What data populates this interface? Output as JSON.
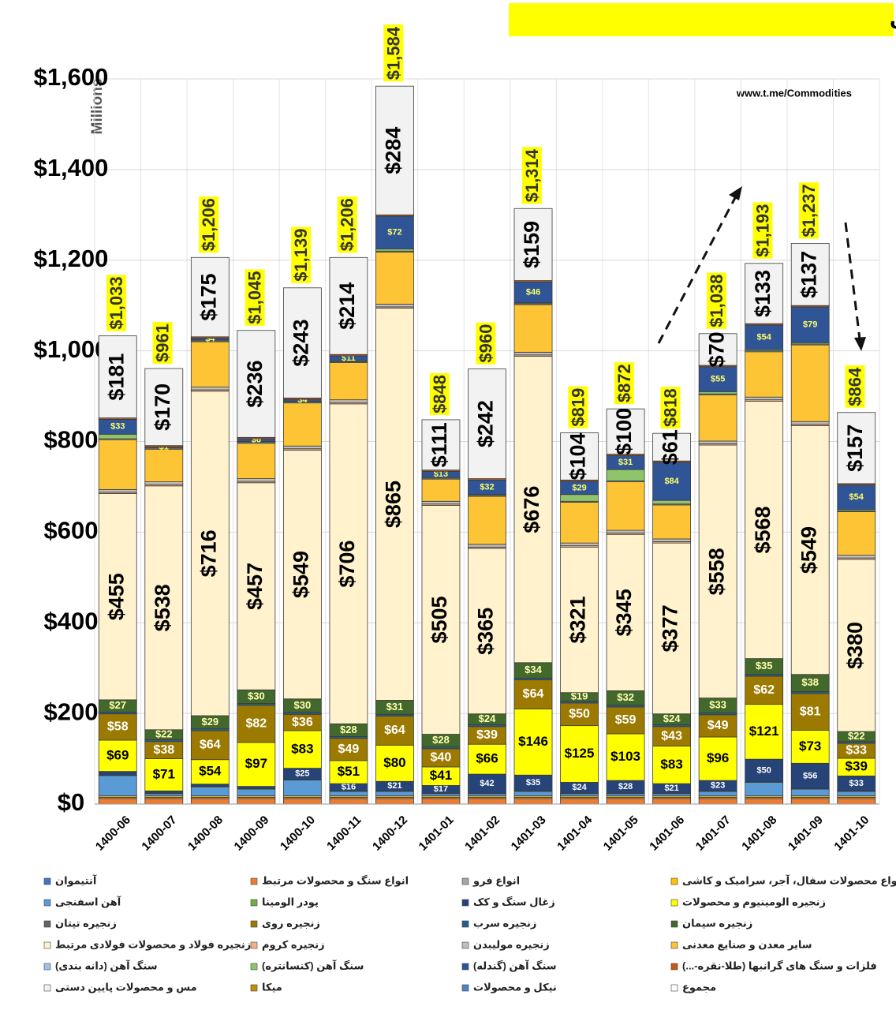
{
  "chart_data": {
    "type": "stacked_bar",
    "title": "صادرات ماهانه محصولات معدن و صنایع معدنی ایران",
    "source": "www.t.me/Commodities",
    "y_label": "Millions",
    "categories": [
      "1400-06",
      "1400-07",
      "1400-08",
      "1400-09",
      "1400-10",
      "1400-11",
      "1400-12",
      "1401-01",
      "1401-02",
      "1401-03",
      "1401-04",
      "1401-05",
      "1401-06",
      "1401-07",
      "1401-08",
      "1401-09",
      "1401-10"
    ],
    "ylim": [
      0,
      1600
    ],
    "yticks": [
      {
        "value": 0,
        "label": "$0"
      },
      {
        "value": 200,
        "label": "$200"
      },
      {
        "value": 400,
        "label": "$400"
      },
      {
        "value": 600,
        "label": "$600"
      },
      {
        "value": 800,
        "label": "$800"
      },
      {
        "value": 1000,
        "label": "$1,000"
      },
      {
        "value": 1200,
        "label": "$1,200"
      },
      {
        "value": 1400,
        "label": "$1,400"
      },
      {
        "value": 1600,
        "label": "$1,600"
      }
    ],
    "grid": true,
    "legend": "bottom",
    "series": [
      {
        "name": "آنتیموان",
        "color": "#4472c4",
        "values": [
          0,
          0,
          0,
          0,
          0,
          0,
          0,
          0,
          0,
          0,
          0,
          0,
          0,
          0,
          0,
          0,
          0
        ]
      },
      {
        "name": "انواع سنگ و محصولات مرتبط",
        "color": "#ed7d31",
        "values": [
          12,
          12,
          12,
          12,
          12,
          12,
          12,
          12,
          12,
          12,
          12,
          12,
          12,
          12,
          12,
          12,
          12
        ]
      },
      {
        "name": "انواع فرو",
        "color": "#a5a5a5",
        "values": [
          3,
          3,
          3,
          3,
          3,
          3,
          3,
          3,
          3,
          3,
          3,
          3,
          3,
          3,
          3,
          3,
          3
        ]
      },
      {
        "name": "انواع محصولات سفال، آجر، سرامیک و کاشی",
        "color": "#ffc000",
        "values": [
          3,
          3,
          3,
          3,
          3,
          3,
          3,
          3,
          3,
          3,
          3,
          3,
          3,
          3,
          3,
          3,
          3
        ]
      },
      {
        "name": "آهن اسفنجی",
        "color": "#5b9bd5",
        "values": [
          45,
          5,
          20,
          15,
          35,
          10,
          10,
          5,
          5,
          10,
          5,
          5,
          5,
          10,
          30,
          15,
          10
        ]
      },
      {
        "name": "پودر الومینا",
        "color": "#70ad47",
        "values": [
          1,
          1,
          1,
          1,
          1,
          1,
          1,
          1,
          1,
          1,
          1,
          1,
          1,
          1,
          1,
          1,
          1
        ]
      },
      {
        "name": "زغال سنگ و کک",
        "color": "#264478",
        "values": [
          8,
          5,
          5,
          5,
          25,
          16,
          21,
          17,
          42,
          35,
          24,
          28,
          21,
          23,
          50,
          56,
          33
        ],
        "value_labels": [
          null,
          null,
          null,
          null,
          "$25",
          "$16",
          "$21",
          "$17",
          "$42",
          "$35",
          "$24",
          "$28",
          "$21",
          "$23",
          "$50",
          "$56",
          "$33"
        ]
      },
      {
        "name": "زنجیره الومینیوم و محصولات",
        "color": "#ffff00",
        "values": [
          69,
          71,
          54,
          97,
          83,
          51,
          80,
          41,
          66,
          146,
          125,
          103,
          83,
          96,
          121,
          73,
          39
        ],
        "value_labels": [
          "$69",
          "$71",
          "$54",
          "$97",
          "$83",
          "$51",
          "$80",
          "$41",
          "$66",
          "$146",
          "$125",
          "$103",
          "$83",
          "$96",
          "$121",
          "$73",
          "$39"
        ]
      },
      {
        "name": "زنجیره تیتان",
        "color": "#636363",
        "values": [
          0,
          0,
          0,
          0,
          0,
          0,
          0,
          0,
          0,
          0,
          0,
          0,
          0,
          0,
          0,
          0,
          0
        ]
      },
      {
        "name": "زنجیره روی",
        "color": "#9c7a00",
        "values": [
          58,
          38,
          64,
          82,
          36,
          49,
          64,
          40,
          39,
          64,
          50,
          59,
          43,
          49,
          62,
          81,
          33
        ],
        "value_labels": [
          "$58",
          "$38",
          "$64",
          "$82",
          "$36",
          "$49",
          "$64",
          "$40",
          "$39",
          "$64",
          "$50",
          "$59",
          "$43",
          "$49",
          "$62",
          "$81",
          "$33"
        ]
      },
      {
        "name": "زنجیره سرب",
        "color": "#255e91",
        "values": [
          4,
          4,
          4,
          4,
          4,
          4,
          4,
          4,
          4,
          4,
          4,
          4,
          4,
          4,
          4,
          4,
          4
        ]
      },
      {
        "name": "زنجیره سیمان",
        "color": "#43682b",
        "values": [
          27,
          22,
          29,
          30,
          30,
          28,
          31,
          28,
          24,
          34,
          19,
          32,
          24,
          33,
          35,
          38,
          22
        ],
        "value_labels": [
          "$27",
          "$22",
          "$29",
          "$30",
          "$30",
          "$28",
          "$31",
          "$28",
          "$24",
          "$34",
          "$19",
          "$32",
          "$24",
          "$33",
          "$35",
          "$38",
          "$22"
        ]
      },
      {
        "name": "زنجیره فولاد و محصولات فولادی مرتبط",
        "color": "#fff2cc",
        "values": [
          455,
          538,
          716,
          457,
          549,
          706,
          865,
          505,
          365,
          676,
          321,
          345,
          377,
          558,
          568,
          549,
          380
        ],
        "value_labels": [
          "$455",
          "$538",
          "$716",
          "$457",
          "$549",
          "$706",
          "$865",
          "$505",
          "$365",
          "$676",
          "$321",
          "$345",
          "$377",
          "$558",
          "$568",
          "$549",
          "$380"
        ]
      },
      {
        "name": "زنجیره کروم",
        "color": "#f4b183",
        "values": [
          3,
          3,
          3,
          3,
          3,
          3,
          3,
          3,
          3,
          3,
          3,
          3,
          3,
          3,
          3,
          3,
          3
        ]
      },
      {
        "name": "زنجیره مولیبدن",
        "color": "#bfbfbf",
        "values": [
          6,
          6,
          6,
          6,
          6,
          6,
          6,
          6,
          6,
          6,
          6,
          6,
          6,
          6,
          6,
          6,
          6
        ]
      },
      {
        "name": "سایر معدن و صنایع معدنی",
        "color": "#fdc436",
        "values": [
          110,
          72,
          100,
          78,
          95,
          82,
          115,
          49,
          106,
          105,
          90,
          107,
          75,
          102,
          100,
          169,
          96
        ]
      },
      {
        "name": "سنگ آهن (دانه بندی)",
        "color": "#9dc3e6",
        "values": [
          2,
          2,
          2,
          2,
          2,
          2,
          2,
          2,
          2,
          2,
          2,
          2,
          2,
          2,
          2,
          2,
          2
        ]
      },
      {
        "name": "سنگ آهن (کنسانتره)",
        "color": "#8fc46b",
        "values": [
          10,
          2,
          2,
          2,
          2,
          2,
          5,
          2,
          2,
          2,
          15,
          25,
          8,
          5,
          3,
          3,
          3
        ]
      },
      {
        "name": "سنگ آهن (گندله)",
        "color": "#2f5597",
        "values": [
          33,
          1,
          4,
          6,
          4,
          11,
          72,
          13,
          32,
          46,
          29,
          31,
          84,
          55,
          54,
          79,
          54
        ],
        "value_labels": [
          "$33",
          "$1",
          "$4",
          "$6",
          "$4",
          "$11",
          "$72",
          "$13",
          "$32",
          "$46",
          "$29",
          "$31",
          "$84",
          "$55",
          "$54",
          "$79",
          "$54"
        ]
      },
      {
        "name": "فلزات و سنگ های گرانبها (طلا-نقره-...)",
        "color": "#c55a11",
        "values": [
          3,
          3,
          3,
          3,
          3,
          3,
          3,
          3,
          3,
          3,
          3,
          3,
          3,
          3,
          3,
          3,
          3
        ]
      },
      {
        "name": "مس و محصولات پایین دستی",
        "color": "#f2f2f2",
        "values": [
          181,
          170,
          175,
          236,
          243,
          214,
          284,
          111,
          242,
          159,
          104,
          100,
          61,
          70,
          133,
          137,
          157
        ],
        "value_labels": [
          "$181",
          "$170",
          "$175",
          "$236",
          "$243",
          "$214",
          "$284",
          "$111",
          "$242",
          "$159",
          "$104",
          "$100",
          "$61",
          "$70",
          "$133",
          "$137",
          "$157"
        ]
      },
      {
        "name": "میکا",
        "color": "#bf9000",
        "values": [
          0,
          0,
          0,
          0,
          0,
          0,
          0,
          0,
          0,
          0,
          0,
          0,
          0,
          0,
          0,
          0,
          0
        ]
      },
      {
        "name": "نیکل و محصولات",
        "color": "#4a86c8",
        "values": [
          0,
          0,
          0,
          0,
          0,
          0,
          0,
          0,
          0,
          0,
          0,
          0,
          0,
          0,
          0,
          0,
          0
        ]
      }
    ],
    "total": {
      "name": "مجموع",
      "values": [
        1033,
        961,
        1206,
        1045,
        1139,
        1206,
        1584,
        848,
        960,
        1314,
        819,
        872,
        818,
        1038,
        1193,
        1237,
        864
      ],
      "value_labels": [
        "$1,033",
        "$961",
        "$1,206",
        "$1,045",
        "$1,139",
        "$1,206",
        "$1,584",
        "$848",
        "$960",
        "$1,314",
        "$819",
        "$872",
        "$818",
        "$1,038",
        "$1,193",
        "$1,237",
        "$864"
      ]
    }
  }
}
